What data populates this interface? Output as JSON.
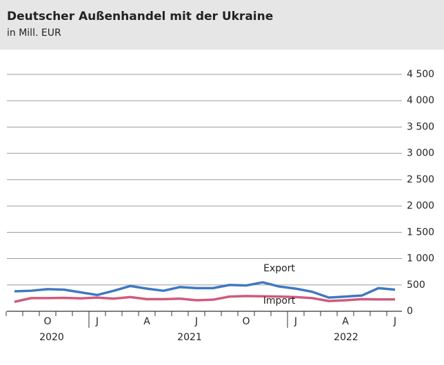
{
  "chart_data": {
    "type": "line",
    "title": "Deutscher Außenhandel mit der Ukraine",
    "subtitle": "in Mill. EUR",
    "categories": [
      null,
      null,
      "O",
      null,
      null,
      "J",
      null,
      null,
      "A",
      null,
      null,
      "J",
      null,
      null,
      "O",
      null,
      null,
      "J",
      null,
      null,
      "A",
      null,
      null,
      "J"
    ],
    "years": [
      "2020",
      "2021",
      "2022"
    ],
    "series": [
      {
        "name": "Export",
        "color": "#3f78c0",
        "values": [
          380,
          390,
          420,
          410,
          360,
          310,
          390,
          480,
          430,
          390,
          460,
          440,
          440,
          500,
          490,
          550,
          470,
          430,
          370,
          260,
          280,
          300,
          440,
          410
        ]
      },
      {
        "name": "Import",
        "color": "#d05a7c",
        "values": [
          180,
          250,
          250,
          255,
          245,
          260,
          240,
          270,
          230,
          230,
          240,
          210,
          220,
          280,
          290,
          285,
          280,
          270,
          250,
          195,
          210,
          230,
          225,
          225
        ]
      }
    ],
    "ylim": [
      0,
      4500
    ],
    "yticks": [
      0,
      500,
      {
        "value": 1000,
        "label": "1 000"
      },
      {
        "value": 1500,
        "label": "1 500"
      },
      {
        "value": 2000,
        "label": "2 000"
      },
      {
        "value": 2500,
        "label": "2 500"
      },
      {
        "value": 3000,
        "label": "3 000"
      },
      {
        "value": 3500,
        "label": "3 500"
      },
      {
        "value": 4000,
        "label": "4 000"
      },
      {
        "value": 4500,
        "label": "4 500"
      }
    ],
    "grid": true
  }
}
